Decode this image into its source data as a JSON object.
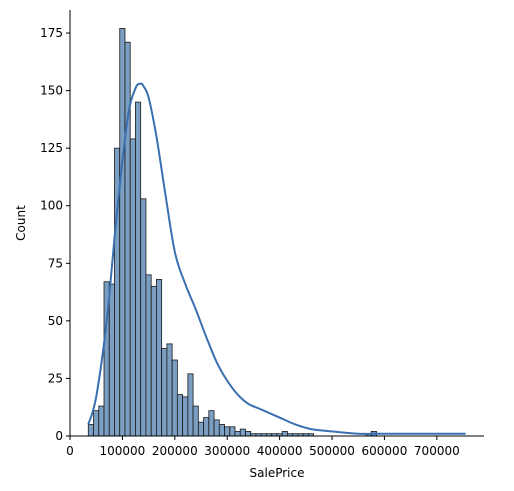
{
  "chart_data": {
    "type": "bar",
    "subtype": "histogram-with-kde",
    "xlabel": "SalePrice",
    "ylabel": "Count",
    "xlim": [
      0,
      790000
    ],
    "ylim": [
      0,
      185
    ],
    "grid": false,
    "spines": "left-bottom",
    "x_ticks": [
      0,
      100000,
      200000,
      300000,
      400000,
      500000,
      600000,
      700000
    ],
    "x_tick_labels": [
      "0",
      "100000",
      "200000",
      "300000",
      "400000",
      "500000",
      "600000",
      "700000"
    ],
    "y_ticks": [
      0,
      25,
      50,
      75,
      100,
      125,
      150,
      175
    ],
    "y_tick_labels": [
      "0",
      "25",
      "50",
      "75",
      "100",
      "125",
      "150",
      "175"
    ],
    "bar_color": "#7a9fc2",
    "bar_edge_color": "#1a1a1a",
    "kde_color": "#3a6fb0",
    "bins": {
      "start": 34900,
      "width": 10000,
      "counts": [
        5,
        11,
        13,
        67,
        66,
        125,
        177,
        171,
        129,
        145,
        103,
        70,
        65,
        68,
        38,
        40,
        33,
        18,
        17,
        27,
        13,
        6,
        8,
        11,
        7,
        5,
        4,
        4,
        2,
        3,
        2,
        1,
        1,
        1,
        1,
        1,
        1,
        2,
        1,
        1,
        1,
        1,
        1,
        0,
        0,
        0,
        0,
        0,
        0,
        0,
        0,
        0,
        0,
        1,
        2
      ]
    },
    "kde": {
      "x": [
        34900,
        50000,
        70000,
        90000,
        110000,
        125000,
        135000,
        140000,
        150000,
        165000,
        180000,
        200000,
        220000,
        240000,
        260000,
        280000,
        300000,
        320000,
        340000,
        360000,
        380000,
        400000,
        430000,
        460000,
        500000,
        550000,
        600000,
        650000,
        700000,
        745000,
        755000
      ],
      "y": [
        5,
        17,
        50,
        98,
        138,
        151,
        153,
        152,
        147,
        130,
        108,
        80,
        66,
        55,
        43,
        32,
        24,
        18,
        14,
        12,
        10,
        8,
        5,
        3,
        2,
        1,
        1,
        1,
        1,
        1,
        1
      ]
    }
  }
}
